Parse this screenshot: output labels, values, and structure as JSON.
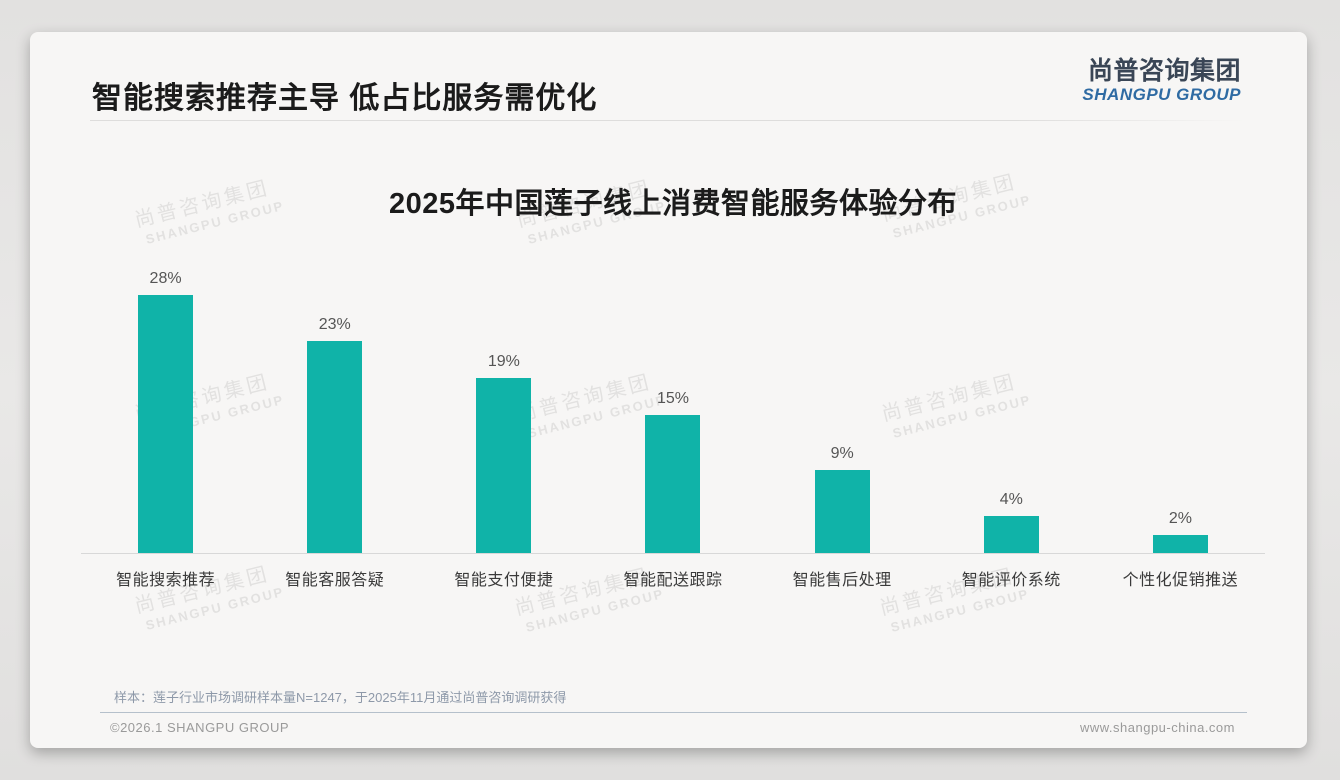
{
  "header": {
    "title": "智能搜索推荐主导 低占比服务需优化"
  },
  "logo": {
    "cn": "尚普咨询集团",
    "en": "SHANGPU GROUP"
  },
  "watermark": {
    "cn": "尚普咨询集团",
    "en": "SHANGPU GROUP"
  },
  "chart_data": {
    "type": "bar",
    "title": "2025年中国莲子线上消费智能服务体验分布",
    "categories": [
      "智能搜索推荐",
      "智能客服答疑",
      "智能支付便捷",
      "智能配送跟踪",
      "智能售后处理",
      "智能评价系统",
      "个性化促销推送"
    ],
    "values": [
      28,
      23,
      19,
      15,
      9,
      4,
      2
    ],
    "value_suffix": "%",
    "xlabel": "",
    "ylabel": "",
    "ylim": [
      0,
      30
    ],
    "grid": false,
    "legend": false,
    "bar_color": "#10b3a8",
    "value_label_position": "above-bars"
  },
  "footnote": "样本：莲子行业市场调研样本量N=1247，于2025年11月通过尚普咨询调研获得",
  "footer": {
    "left": "©2026.1 SHANGPU GROUP",
    "right": "www.shangpu-china.com"
  },
  "colors": {
    "accent_teal": "#10b3a8",
    "logo_dark": "#3a4656",
    "logo_blue": "#2f6ba3"
  }
}
